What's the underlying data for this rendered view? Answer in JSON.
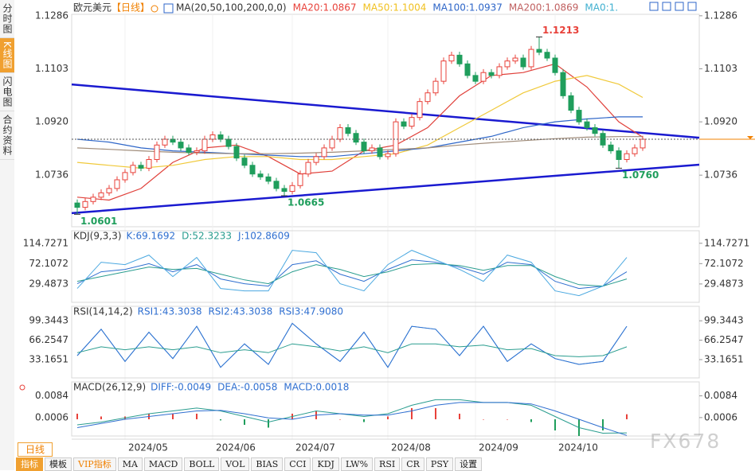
{
  "sidebar": [
    "分时图",
    "K线图",
    "闪电图",
    "合约资料"
  ],
  "chart_data": {
    "type": "candlestick",
    "title": "欧元美元",
    "period": "【日线】",
    "legend": {
      "label": "MA(20,50,100,200,0,0)",
      "items": [
        {
          "text": "MA20:1.0867",
          "color": "#e8413a"
        },
        {
          "text": "MA50:1.1004",
          "color": "#f0c020"
        },
        {
          "text": "MA100:1.0937",
          "color": "#2e66c8"
        },
        {
          "text": "MA200:1.0869",
          "color": "#c06060"
        },
        {
          "text": "MA0:1.",
          "color": "#40b0d0"
        }
      ]
    },
    "x_ticks": [
      {
        "value": 6,
        "label": "2024/05"
      },
      {
        "value": 17,
        "label": "2024/06"
      },
      {
        "value": 27,
        "label": "2024/07"
      },
      {
        "value": 39,
        "label": "2024/08"
      },
      {
        "value": 50,
        "label": "2024/09"
      },
      {
        "value": 60,
        "label": "2024/10"
      }
    ],
    "open": [
      1.064,
      1.0625,
      1.0645,
      1.066,
      1.0675,
      1.069,
      1.072,
      1.0745,
      1.077,
      1.076,
      1.079,
      1.084,
      1.086,
      1.085,
      1.083,
      1.0815,
      1.082,
      1.086,
      1.0875,
      1.086,
      1.0835,
      1.0795,
      1.077,
      1.074,
      1.073,
      1.0715,
      1.069,
      1.068,
      1.07,
      1.074,
      1.078,
      1.08,
      1.083,
      1.086,
      1.09,
      1.088,
      1.085,
      1.082,
      1.083,
      1.08,
      1.081,
      1.092,
      1.0905,
      1.0935,
      1.099,
      1.102,
      1.106,
      1.113,
      1.115,
      1.112,
      1.108,
      1.106,
      1.109,
      1.108,
      1.111,
      1.113,
      1.114,
      1.111,
      1.117,
      1.116,
      1.114,
      1.109,
      1.101,
      1.096,
      1.092,
      1.09,
      1.088,
      1.084,
      1.082,
      1.079,
      1.081,
      1.083
    ],
    "high": [
      1.0652,
      1.0657,
      1.0672,
      1.0687,
      1.0702,
      1.0732,
      1.0757,
      1.0782,
      1.0782,
      1.0802,
      1.0852,
      1.0872,
      1.0872,
      1.0862,
      1.0842,
      1.0832,
      1.0872,
      1.0887,
      1.0887,
      1.0872,
      1.0847,
      1.0807,
      1.0782,
      1.0752,
      1.0742,
      1.0727,
      1.0702,
      1.0712,
      1.0752,
      1.0792,
      1.0812,
      1.0842,
      1.0872,
      1.0912,
      1.0912,
      1.0892,
      1.0862,
      1.0842,
      1.0842,
      1.0822,
      1.0932,
      1.0932,
      1.0947,
      1.1002,
      1.1032,
      1.1072,
      1.1142,
      1.1162,
      1.1162,
      1.1132,
      1.1092,
      1.1102,
      1.1102,
      1.1122,
      1.1142,
      1.1152,
      1.1152,
      1.1182,
      1.1213,
      1.1172,
      1.1152,
      1.1102,
      1.1022,
      1.0972,
      1.0932,
      1.0912,
      1.0892,
      1.0852,
      1.0832,
      1.0822,
      1.0842,
      1.0872
    ],
    "low": [
      1.0601,
      1.0615,
      1.0635,
      1.065,
      1.0665,
      1.068,
      1.071,
      1.0735,
      1.075,
      1.075,
      1.078,
      1.083,
      1.084,
      1.082,
      1.0805,
      1.0805,
      1.081,
      1.085,
      1.085,
      1.0825,
      1.0785,
      1.076,
      1.073,
      1.072,
      1.0705,
      1.068,
      1.0665,
      1.067,
      1.069,
      1.073,
      1.077,
      1.079,
      1.082,
      1.085,
      1.087,
      1.084,
      1.081,
      1.081,
      1.079,
      1.079,
      1.08,
      1.0895,
      1.0895,
      1.0925,
      1.098,
      1.101,
      1.105,
      1.112,
      1.111,
      1.107,
      1.105,
      1.105,
      1.107,
      1.107,
      1.11,
      1.112,
      1.11,
      1.11,
      1.115,
      1.113,
      1.108,
      1.1,
      1.095,
      1.091,
      1.089,
      1.087,
      1.083,
      1.081,
      1.076,
      1.078,
      1.08,
      1.082
    ],
    "close": [
      1.0625,
      1.0645,
      1.066,
      1.0675,
      1.069,
      1.072,
      1.0745,
      1.077,
      1.076,
      1.079,
      1.084,
      1.086,
      1.085,
      1.083,
      1.0815,
      1.082,
      1.086,
      1.0875,
      1.086,
      1.0835,
      1.0795,
      1.077,
      1.074,
      1.073,
      1.0715,
      1.069,
      1.068,
      1.07,
      1.074,
      1.078,
      1.08,
      1.083,
      1.086,
      1.09,
      1.088,
      1.085,
      1.082,
      1.083,
      1.08,
      1.081,
      1.092,
      1.0905,
      1.0935,
      1.099,
      1.102,
      1.106,
      1.113,
      1.115,
      1.112,
      1.108,
      1.106,
      1.109,
      1.108,
      1.111,
      1.113,
      1.114,
      1.111,
      1.117,
      1.116,
      1.114,
      1.109,
      1.101,
      1.096,
      1.092,
      1.09,
      1.088,
      1.084,
      1.082,
      1.079,
      1.081,
      1.083,
      1.086
    ],
    "up_color": "#e8413a",
    "down_color": "#1f9e5c",
    "ylim": [
      1.0558,
      1.1291
    ],
    "yticks": [
      1.0736,
      {
        "value": 1.092,
        "label": "1.0920"
      },
      1.1103,
      1.1286
    ],
    "annotations": [
      {
        "index": 0,
        "value": 1.0601,
        "label": "1.0601",
        "color": "#1f9e5c"
      },
      {
        "index": 26,
        "value": 1.0665,
        "label": "1.0665",
        "color": "#1f9e5c"
      },
      {
        "index": 58,
        "value": 1.1213,
        "label": "1.1213",
        "color": "#e8413a"
      },
      {
        "index": 68,
        "value": 1.076,
        "label": "1.0760",
        "color": "#1f9e5c"
      }
    ],
    "ma_x": [
      0,
      4,
      8,
      12,
      16,
      20,
      24,
      28,
      32,
      36,
      40,
      44,
      48,
      52,
      56,
      60,
      64,
      68,
      71
    ],
    "ma": [
      {
        "color": "#e0403a",
        "values": [
          1.066,
          1.065,
          1.069,
          1.078,
          1.083,
          1.084,
          1.08,
          1.074,
          1.075,
          1.082,
          1.084,
          1.09,
          1.101,
          1.108,
          1.109,
          1.112,
          1.104,
          1.092,
          1.0867
        ]
      },
      {
        "color": "#f0c93a",
        "values": [
          1.078,
          1.077,
          1.076,
          1.077,
          1.079,
          1.08,
          1.08,
          1.079,
          1.079,
          1.08,
          1.081,
          1.084,
          1.09,
          1.096,
          1.102,
          1.106,
          1.108,
          1.105,
          1.1004
        ]
      },
      {
        "color": "#2e66c8",
        "values": [
          1.086,
          1.085,
          1.083,
          1.082,
          1.0815,
          1.081,
          1.0805,
          1.08,
          1.08,
          1.081,
          1.082,
          1.083,
          1.085,
          1.087,
          1.09,
          1.092,
          1.093,
          1.0937,
          1.0937
        ]
      },
      {
        "color": "#a08c7a",
        "values": [
          1.083,
          1.0825,
          1.082,
          1.0815,
          1.0812,
          1.081,
          1.081,
          1.0812,
          1.0815,
          1.082,
          1.0825,
          1.083,
          1.084,
          1.0848,
          1.0855,
          1.0862,
          1.0867,
          1.0869,
          1.0869
        ]
      }
    ],
    "trendlines": [
      {
        "color": "#1a1ad0",
        "values": [
          1.1049,
          1.0865
        ]
      },
      {
        "color": "#1a1ad0",
        "values": [
          1.0605,
          1.0772
        ]
      }
    ],
    "indicator_x": [
      0,
      3,
      6,
      9,
      12,
      15,
      18,
      21,
      24,
      27,
      30,
      33,
      36,
      39,
      42,
      45,
      48,
      51,
      54,
      57,
      60,
      63,
      66,
      69
    ],
    "indicators": [
      {
        "title": "KDJ(9,3,3)",
        "items": [
          {
            "text": "K:69.1692",
            "color": "#2f6fd0"
          },
          {
            "text": "D:52.3233",
            "color": "#2a9d8f"
          },
          {
            "text": "J:102.8609",
            "color": "#2f6fd0"
          }
        ],
        "ylim": [
          -9,
          141
        ],
        "yticks": [
          29.4873,
          72.1072,
          114.7271
        ],
        "series": [
          {
            "color": "#2f6fd0",
            "values": [
              30,
              55,
              60,
              72,
              55,
              70,
              40,
              30,
              25,
              70,
              78,
              50,
              35,
              60,
              80,
              75,
              65,
              50,
              75,
              70,
              35,
              20,
              25,
              55
            ]
          },
          {
            "color": "#2a9d8f",
            "values": [
              35,
              45,
              55,
              65,
              60,
              62,
              50,
              38,
              30,
              55,
              70,
              60,
              45,
              55,
              70,
              72,
              68,
              58,
              68,
              68,
              45,
              28,
              25,
              40
            ]
          },
          {
            "color": "#4aa8e0",
            "values": [
              20,
              75,
              70,
              90,
              45,
              85,
              20,
              15,
              15,
              100,
              95,
              30,
              15,
              70,
              100,
              80,
              60,
              35,
              90,
              75,
              15,
              5,
              25,
              85
            ]
          }
        ]
      },
      {
        "title": "RSI(14,14,2)",
        "items": [
          {
            "text": "RSI1:43.3038",
            "color": "#2f6fd0"
          },
          {
            "text": "RSI2:43.3038",
            "color": "#2f6fd0"
          },
          {
            "text": "RSI3:47.9080",
            "color": "#2f6fd0"
          }
        ],
        "ylim": [
          2,
          124
        ],
        "yticks": [
          33.1651,
          66.2547,
          99.3443
        ],
        "series": [
          {
            "color": "#4aa8e0",
            "values": [
              40,
              85,
              30,
              80,
              35,
              90,
              20,
              60,
              25,
              95,
              60,
              30,
              80,
              20,
              90,
              85,
              40,
              90,
              30,
              60,
              35,
              25,
              30,
              90
            ]
          },
          {
            "color": "#2f6fd0",
            "values": [
              40,
              85,
              30,
              80,
              35,
              90,
              20,
              60,
              25,
              95,
              60,
              30,
              80,
              20,
              90,
              85,
              40,
              90,
              30,
              60,
              35,
              25,
              30,
              90
            ]
          },
          {
            "color": "#2a9d8f",
            "values": [
              45,
              55,
              50,
              55,
              50,
              55,
              45,
              50,
              45,
              60,
              55,
              48,
              55,
              45,
              60,
              60,
              55,
              58,
              50,
              52,
              40,
              38,
              40,
              55
            ]
          }
        ]
      },
      {
        "title": "MACD(26,12,9)",
        "items": [
          {
            "text": "DIFF:-0.0049",
            "color": "#2f6fd0"
          },
          {
            "text": "DEA:-0.0058",
            "color": "#2f6fd0"
          },
          {
            "text": "MACD:0.0018",
            "color": "#2f6fd0"
          }
        ],
        "ylim": [
          -0.006,
          0.0134
        ],
        "yticks": [
          0.0006,
          0.0084
        ],
        "series": [
          {
            "color": "#2a9d8f",
            "values": [
              -0.002,
              -0.001,
              0.0005,
              0.002,
              0.003,
              0.004,
              0.003,
              0.001,
              -0.001,
              0.001,
              0.003,
              0.002,
              0.001,
              0.002,
              0.005,
              0.007,
              0.007,
              0.006,
              0.006,
              0.005,
              0.001,
              -0.003,
              -0.005,
              -0.0049
            ]
          },
          {
            "color": "#2f6fd0",
            "values": [
              -0.003,
              -0.0015,
              0,
              0.001,
              0.002,
              0.003,
              0.0032,
              0.002,
              0.0005,
              0,
              0.0015,
              0.002,
              0.0015,
              0.0015,
              0.003,
              0.005,
              0.006,
              0.006,
              0.006,
              0.0055,
              0.003,
              0,
              -0.003,
              -0.0058
            ]
          }
        ],
        "bars": {
          "up_color": "#e8413a",
          "down_color": "#1f9e5c",
          "values": [
            0.002,
            0.001,
            0.001,
            0.002,
            0.002,
            0.002,
            -0.0004,
            -0.002,
            -0.003,
            0.002,
            0.003,
            0,
            -0.001,
            0.001,
            0.004,
            0.004,
            0.002,
            0,
            0,
            -0.001,
            -0.004,
            -0.006,
            -0.004,
            0.0018
          ]
        }
      }
    ]
  },
  "toolbar": {
    "period": "日线",
    "buttons": [
      "指标",
      "模板",
      "VIP指标",
      "MA",
      "MACD",
      "BOLL",
      "VOL",
      "BIAS",
      "CCI",
      "KDJ",
      "LW%",
      "RSI",
      "CR",
      "PSY",
      "设置"
    ]
  },
  "watermark": "FX678"
}
